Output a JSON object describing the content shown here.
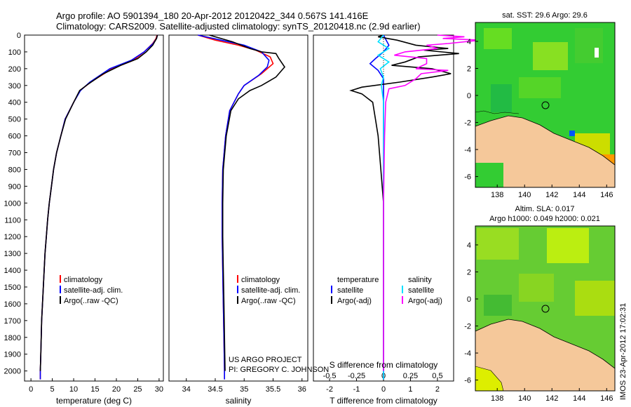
{
  "title": {
    "line1": "Argo profile: AO 5901394_180 20-Apr-2012 20120422_344 0.567S 141.416E",
    "line2": "Climatology: CARS2009. Satellite-adjusted climatology: synTS_20120418.nc (2.9d earlier)"
  },
  "colors": {
    "climatology": "#ff0000",
    "satellite": "#0000ff",
    "argo": "#000000",
    "sal_satellite": "#00e0ff",
    "sal_argo": "#ff00ff",
    "land": "#f5c89a",
    "ocean_green": "#33cc33"
  },
  "depth_axis": {
    "min": 0,
    "max": 2060,
    "ticks": [
      0,
      100,
      200,
      300,
      400,
      500,
      600,
      700,
      800,
      900,
      1000,
      1100,
      1200,
      1300,
      1400,
      1500,
      1600,
      1700,
      1800,
      1900,
      2000
    ]
  },
  "chart_data": [
    {
      "type": "line",
      "name": "temperature-panel",
      "xlabel": "temperature (deg C)",
      "xlim": [
        -1.5,
        31
      ],
      "xticks": [
        0,
        5,
        10,
        15,
        20,
        25,
        30
      ],
      "legend": [
        "climatology",
        "satellite-adj. clim.",
        "Argo(..raw -QC)"
      ],
      "series": [
        {
          "name": "climatology",
          "color": "#ff0000",
          "points": [
            [
              29.5,
              0
            ],
            [
              29.3,
              20
            ],
            [
              28.5,
              50
            ],
            [
              26.5,
              100
            ],
            [
              24,
              150
            ],
            [
              19,
              200
            ],
            [
              14,
              280
            ],
            [
              11.5,
              330
            ],
            [
              10,
              400
            ],
            [
              8,
              500
            ],
            [
              7,
              600
            ],
            [
              6,
              700
            ],
            [
              5.3,
              800
            ],
            [
              4.8,
              900
            ],
            [
              4.3,
              1000
            ],
            [
              3.9,
              1100
            ],
            [
              3.6,
              1200
            ],
            [
              3.3,
              1300
            ],
            [
              3.1,
              1400
            ],
            [
              2.9,
              1500
            ],
            [
              2.7,
              1600
            ],
            [
              2.5,
              1700
            ],
            [
              2.4,
              1800
            ],
            [
              2.3,
              1900
            ],
            [
              2.2,
              2000
            ],
            [
              2.2,
              2050
            ]
          ]
        },
        {
          "name": "satellite-adj. clim.",
          "color": "#0000ff",
          "points": [
            [
              29.6,
              0
            ],
            [
              29.4,
              20
            ],
            [
              28.6,
              50
            ],
            [
              26.5,
              100
            ],
            [
              23.5,
              150
            ],
            [
              18.5,
              200
            ],
            [
              13.8,
              280
            ],
            [
              11.6,
              330
            ],
            [
              10,
              400
            ],
            [
              8,
              500
            ],
            [
              7,
              600
            ],
            [
              6,
              700
            ],
            [
              5.3,
              800
            ],
            [
              4.8,
              900
            ],
            [
              4.3,
              1000
            ],
            [
              3.9,
              1100
            ],
            [
              3.6,
              1200
            ],
            [
              3.3,
              1300
            ],
            [
              3.1,
              1400
            ],
            [
              2.9,
              1500
            ],
            [
              2.7,
              1600
            ],
            [
              2.5,
              1700
            ],
            [
              2.4,
              1800
            ],
            [
              2.3,
              1900
            ],
            [
              2.2,
              2000
            ],
            [
              2.2,
              2050
            ]
          ]
        },
        {
          "name": "Argo(..raw -QC)",
          "color": "#000000",
          "points": [
            [
              29.6,
              0
            ],
            [
              29.4,
              20
            ],
            [
              28.5,
              60
            ],
            [
              27,
              100
            ],
            [
              25,
              140
            ],
            [
              21,
              180
            ],
            [
              17,
              230
            ],
            [
              13.5,
              290
            ],
            [
              11.4,
              330
            ],
            [
              10,
              400
            ],
            [
              8.1,
              500
            ],
            [
              7,
              600
            ],
            [
              6,
              700
            ],
            [
              5.3,
              800
            ],
            [
              4.8,
              900
            ],
            [
              4.3,
              1000
            ],
            [
              3.9,
              1100
            ],
            [
              3.6,
              1200
            ],
            [
              3.3,
              1300
            ],
            [
              3.1,
              1400
            ],
            [
              2.9,
              1500
            ],
            [
              2.7,
              1600
            ],
            [
              2.5,
              1700
            ],
            [
              2.4,
              1800
            ],
            [
              2.3,
              1900
            ],
            [
              2.2,
              2000
            ]
          ]
        }
      ]
    },
    {
      "type": "line",
      "name": "salinity-panel",
      "xlabel": "salinity",
      "xlim": [
        33.7,
        36.1
      ],
      "xticks": [
        34,
        34.5,
        35,
        35.5,
        36
      ],
      "legend": [
        "climatology",
        "satellite-adj. clim.",
        "Argo(..raw -QC)"
      ],
      "annotation": [
        "US ARGO PROJECT",
        "PI: GREGORY C. JOHNSON"
      ],
      "series": [
        {
          "name": "climatology",
          "color": "#ff0000",
          "points": [
            [
              34.2,
              0
            ],
            [
              34.5,
              30
            ],
            [
              34.9,
              60
            ],
            [
              35.2,
              90
            ],
            [
              35.45,
              130
            ],
            [
              35.5,
              170
            ],
            [
              35.3,
              230
            ],
            [
              35.0,
              300
            ],
            [
              34.9,
              350
            ],
            [
              34.75,
              450
            ],
            [
              34.68,
              600
            ],
            [
              34.63,
              800
            ],
            [
              34.62,
              1000
            ],
            [
              34.62,
              1200
            ],
            [
              34.63,
              1400
            ],
            [
              34.64,
              1600
            ],
            [
              34.65,
              1800
            ],
            [
              34.66,
              2000
            ],
            [
              34.66,
              2050
            ]
          ]
        },
        {
          "name": "satellite-adj. clim.",
          "color": "#0000ff",
          "points": [
            [
              34.2,
              0
            ],
            [
              34.6,
              30
            ],
            [
              35.0,
              60
            ],
            [
              35.3,
              100
            ],
            [
              35.43,
              150
            ],
            [
              35.4,
              190
            ],
            [
              35.25,
              240
            ],
            [
              35.0,
              300
            ],
            [
              34.9,
              350
            ],
            [
              34.75,
              450
            ],
            [
              34.68,
              600
            ],
            [
              34.63,
              800
            ],
            [
              34.62,
              1000
            ],
            [
              34.62,
              1200
            ],
            [
              34.63,
              1400
            ],
            [
              34.64,
              1600
            ],
            [
              34.65,
              1800
            ],
            [
              34.66,
              2000
            ],
            [
              34.66,
              2050
            ]
          ]
        },
        {
          "name": "Argo(..raw -QC)",
          "color": "#000000",
          "points": [
            [
              34.4,
              0
            ],
            [
              34.8,
              40
            ],
            [
              35.1,
              80
            ],
            [
              35.3,
              100
            ],
            [
              35.55,
              110
            ],
            [
              35.6,
              140
            ],
            [
              35.7,
              190
            ],
            [
              35.55,
              250
            ],
            [
              35.3,
              300
            ],
            [
              35.1,
              330
            ],
            [
              34.9,
              380
            ],
            [
              34.77,
              450
            ],
            [
              34.69,
              600
            ],
            [
              34.64,
              800
            ],
            [
              34.63,
              1000
            ],
            [
              34.63,
              1200
            ],
            [
              34.64,
              1400
            ],
            [
              34.65,
              1600
            ],
            [
              34.66,
              1800
            ],
            [
              34.67,
              2000
            ]
          ]
        }
      ]
    },
    {
      "type": "line",
      "name": "difference-panel",
      "xlabel": "T difference from climatology",
      "xlabel_top": "S difference from climatology",
      "xlim": [
        -2.6,
        2.6
      ],
      "xticks": [
        -2,
        -1,
        0,
        1,
        2
      ],
      "sticks": [
        -0.5,
        -0.25,
        0,
        0.25,
        0.5
      ],
      "legend_left": [
        "temperature",
        "satellite",
        "Argo(-adj)"
      ],
      "legend_right": [
        "salinity",
        "satellite",
        "Argo(-adj)"
      ],
      "series": [
        {
          "name": "T satellite",
          "color": "#0000ff",
          "points": [
            [
              0,
              0
            ],
            [
              0.1,
              30
            ],
            [
              0.2,
              60
            ],
            [
              0,
              100
            ],
            [
              -0.3,
              140
            ],
            [
              -0.5,
              170
            ],
            [
              -0.2,
              210
            ],
            [
              0,
              260
            ],
            [
              0,
              300
            ],
            [
              0,
              500
            ],
            [
              0,
              1000
            ],
            [
              0,
              1500
            ],
            [
              0,
              2000
            ],
            [
              0,
              2050
            ]
          ]
        },
        {
          "name": "T Argo(-adj)",
          "color": "#000000",
          "points": [
            [
              0,
              0
            ],
            [
              -0.2,
              10
            ],
            [
              0.5,
              30
            ],
            [
              1.2,
              60
            ],
            [
              2.4,
              80
            ],
            [
              1.5,
              90
            ],
            [
              2.8,
              110
            ],
            [
              1.3,
              130
            ],
            [
              0.8,
              160
            ],
            [
              0.3,
              180
            ],
            [
              1.8,
              200
            ],
            [
              2.5,
              230
            ],
            [
              1.8,
              250
            ],
            [
              0.6,
              280
            ],
            [
              -0.8,
              310
            ],
            [
              -1.2,
              330
            ],
            [
              -0.8,
              350
            ],
            [
              -0.4,
              400
            ],
            [
              -0.3,
              500
            ],
            [
              -0.2,
              600
            ],
            [
              -0.1,
              800
            ],
            [
              0,
              1000
            ],
            [
              0,
              1200
            ],
            [
              0,
              1500
            ],
            [
              0,
              2000
            ]
          ]
        },
        {
          "name": "S satellite",
          "color": "#00e0ff",
          "points": [
            [
              0,
              0
            ],
            [
              -0.05,
              40
            ],
            [
              0.05,
              80
            ],
            [
              -0.05,
              120
            ],
            [
              0.05,
              160
            ],
            [
              -0.03,
              200
            ],
            [
              0,
              250
            ],
            [
              -0.02,
              300
            ],
            [
              0,
              400
            ],
            [
              0,
              600
            ],
            [
              0,
              1000
            ],
            [
              0,
              1500
            ],
            [
              0,
              2000
            ],
            [
              0,
              2050
            ]
          ]
        },
        {
          "name": "S Argo(-adj)",
          "color": "#ff00ff",
          "points": [
            [
              0.5,
              0
            ],
            [
              0.75,
              10
            ],
            [
              0.55,
              20
            ],
            [
              0.9,
              30
            ],
            [
              0.6,
              50
            ],
            [
              0.4,
              60
            ],
            [
              0.5,
              80
            ],
            [
              0.2,
              100
            ],
            [
              0.1,
              120
            ],
            [
              0.4,
              140
            ],
            [
              0.4,
              170
            ],
            [
              0.3,
              200
            ],
            [
              0.6,
              210
            ],
            [
              0.35,
              230
            ],
            [
              0.3,
              260
            ],
            [
              0.2,
              300
            ],
            [
              0.05,
              320
            ],
            [
              0.02,
              400
            ],
            [
              0.01,
              600
            ],
            [
              0,
              1000
            ],
            [
              0,
              1500
            ],
            [
              0,
              2000
            ]
          ]
        }
      ]
    },
    {
      "type": "heatmap",
      "name": "sst-map",
      "title": "sat. SST: 29.6 Argo: 29.6",
      "xticks": [
        138,
        140,
        142,
        144,
        146
      ],
      "yticks": [
        4,
        2,
        0,
        -2,
        -4,
        -6
      ],
      "xlim": [
        136.4,
        146.6
      ],
      "ylim": [
        -6.8,
        5.4
      ],
      "argo_location": [
        141.4,
        -0.57
      ]
    },
    {
      "type": "heatmap",
      "name": "sla-map",
      "title": "Altim. SLA: 0.017",
      "subtitle": "Argo h1000: 0.049 h2000: 0.021",
      "xticks": [
        138,
        140,
        142,
        144,
        146
      ],
      "yticks": [
        4,
        2,
        0,
        -2,
        -4,
        -6
      ],
      "xlim": [
        136.4,
        146.6
      ],
      "ylim": [
        -6.8,
        5.4
      ],
      "argo_location": [
        141.4,
        -0.57
      ]
    }
  ],
  "footer_stamp": "IMOS 23-Apr-2012 17:02:31"
}
